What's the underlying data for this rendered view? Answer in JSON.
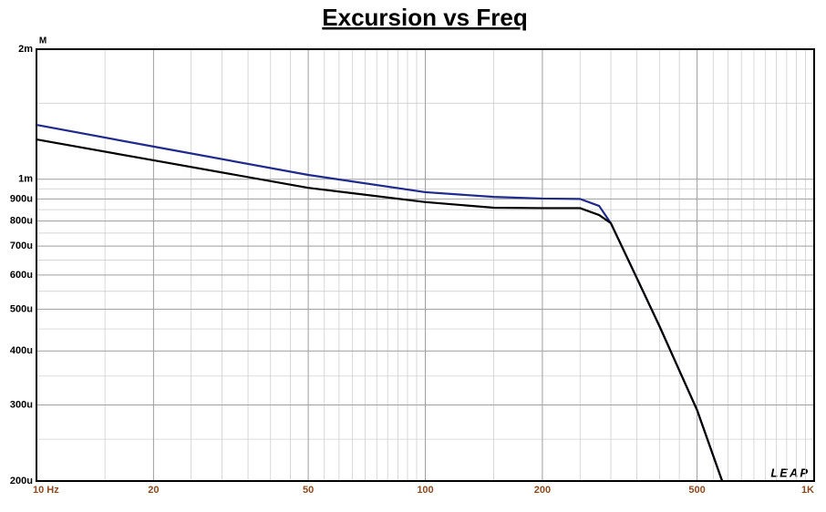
{
  "chart_data": {
    "type": "line",
    "title": "Excursion vs Freq",
    "y_unit_label": "M",
    "watermark": "LEAP",
    "x": [
      10,
      20,
      50,
      100,
      150,
      200,
      250,
      280,
      300,
      350,
      400,
      500,
      580
    ],
    "series": [
      {
        "color": "#1f2a8c",
        "values": [
          0.001336,
          0.00119,
          0.001023,
          0.000933,
          0.00091,
          0.000902,
          0.0009,
          0.000867,
          0.000791,
          0.00059,
          0.000457,
          0.000292,
          0.0002
        ]
      },
      {
        "color": "#000000",
        "values": [
          0.001236,
          0.001106,
          0.000955,
          0.000885,
          0.000859,
          0.000857,
          0.000857,
          0.000826,
          0.000791,
          0.00059,
          0.000457,
          0.000292,
          0.0002
        ]
      }
    ],
    "xlog": true,
    "ylog": true,
    "xlim": [
      10,
      1000
    ],
    "ylim": [
      0.0002,
      0.002
    ],
    "xticks": [
      {
        "value": 10,
        "label": "10 Hz"
      },
      20,
      50,
      100,
      200,
      500,
      {
        "value": 1000,
        "label": "1K"
      }
    ],
    "yticks": [
      {
        "value": 0.002,
        "label": "2m"
      },
      {
        "value": 0.001,
        "label": "1m"
      },
      {
        "value": 0.0009,
        "label": "900u"
      },
      {
        "value": 0.0008,
        "label": "800u"
      },
      {
        "value": 0.0007,
        "label": "700u"
      },
      {
        "value": 0.0006,
        "label": "600u"
      },
      {
        "value": 0.0005,
        "label": "500u"
      },
      {
        "value": 0.0004,
        "label": "400u"
      },
      {
        "value": 0.0003,
        "label": "300u"
      },
      {
        "value": 0.0002,
        "label": "200u"
      }
    ],
    "grid": true,
    "minor_grid": true
  }
}
